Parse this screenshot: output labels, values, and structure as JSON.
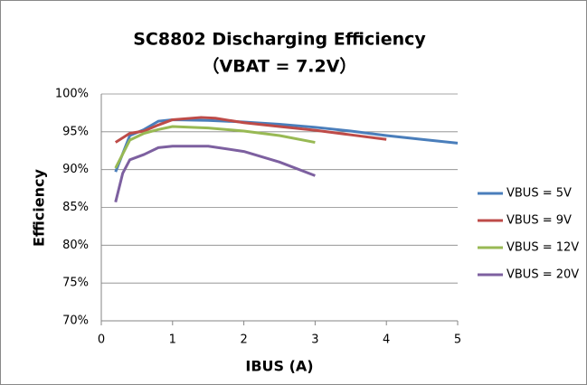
{
  "chart_data": {
    "type": "line",
    "title": "SC8802 Discharging Efficiency",
    "subtitle": "（VBAT = 7.2V）",
    "x_label": "IBUS (A)",
    "y_label": "Efficiency",
    "xlim": [
      0,
      5
    ],
    "xticks": [
      0,
      1,
      2,
      3,
      4,
      5
    ],
    "ylim": [
      70,
      100
    ],
    "yticks": [
      {
        "value": 70,
        "label": "70%"
      },
      {
        "value": 75,
        "label": "75%"
      },
      {
        "value": 80,
        "label": "80%"
      },
      {
        "value": 85,
        "label": "85%"
      },
      {
        "value": 90,
        "label": "90%"
      },
      {
        "value": 95,
        "label": "95%"
      },
      {
        "value": 100,
        "label": "100%"
      }
    ],
    "grid": true,
    "legend": "right",
    "series": [
      {
        "name": "VBUS = 5V",
        "color": "#4a7ebb",
        "x": [
          0.2,
          0.4,
          0.6,
          0.8,
          1.0,
          1.5,
          2.0,
          2.5,
          3.0,
          3.5,
          4.0,
          4.5,
          5.0
        ],
        "values": [
          89.7,
          94.5,
          95.3,
          96.4,
          96.6,
          96.5,
          96.3,
          96.0,
          95.6,
          95.1,
          94.5,
          94.0,
          93.5
        ]
      },
      {
        "name": "VBUS = 9V",
        "color": "#be4b48",
        "x": [
          0.2,
          0.4,
          0.6,
          0.8,
          1.0,
          1.4,
          1.6,
          2.0,
          2.5,
          3.0,
          3.5,
          4.0
        ],
        "values": [
          93.6,
          94.8,
          95.1,
          95.9,
          96.6,
          96.9,
          96.8,
          96.2,
          95.7,
          95.2,
          94.6,
          94.0
        ]
      },
      {
        "name": "VBUS = 12V",
        "color": "#98b954",
        "x": [
          0.2,
          0.4,
          0.6,
          0.8,
          1.0,
          1.5,
          2.0,
          2.5,
          3.0
        ],
        "values": [
          90.2,
          93.9,
          94.8,
          95.3,
          95.7,
          95.5,
          95.1,
          94.5,
          93.6
        ]
      },
      {
        "name": "VBUS = 20V",
        "color": "#7d60a0",
        "x": [
          0.2,
          0.3,
          0.4,
          0.6,
          0.8,
          1.0,
          1.5,
          2.0,
          2.5,
          3.0
        ],
        "values": [
          85.7,
          89.5,
          91.3,
          92.0,
          92.9,
          93.1,
          93.1,
          92.4,
          91.0,
          89.2
        ]
      }
    ]
  }
}
